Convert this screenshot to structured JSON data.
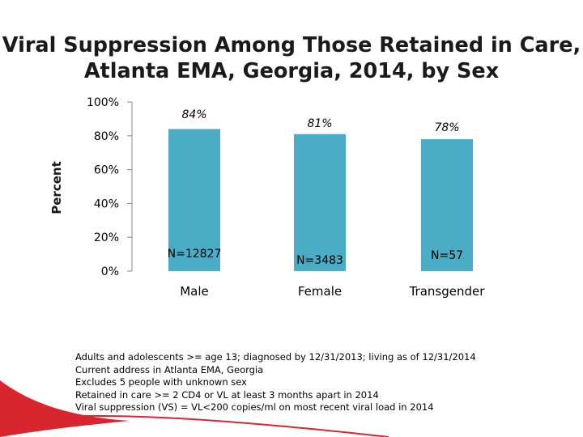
{
  "title": {
    "line1": "Viral Suppression Among Those Retained in Care,",
    "line2": "Atlanta EMA, Georgia, 2014, by Sex"
  },
  "chart_data": {
    "type": "bar",
    "title": "Viral Suppression Among Those Retained in Care, Atlanta EMA, Georgia, 2014, by Sex",
    "xlabel": "",
    "ylabel": "Percent",
    "ylim": [
      0,
      100
    ],
    "yticks": [
      0,
      20,
      40,
      60,
      80,
      100
    ],
    "ytick_labels": [
      "0%",
      "20%",
      "40%",
      "60%",
      "80%",
      "100%"
    ],
    "categories": [
      "Male",
      "Female",
      "Transgender"
    ],
    "values": [
      84,
      81,
      78
    ],
    "value_labels": [
      "84%",
      "81%",
      "78%"
    ],
    "n_labels": [
      "N=12827",
      "N=3483",
      "N=57"
    ],
    "grid": false,
    "bar_color": "#4bacc6"
  },
  "notes": [
    "Adults and adolescents >= age 13; diagnosed by 12/31/2013; living as of 12/31/2014",
    "Current address in Atlanta EMA, Georgia",
    "Excludes 5 people with unknown sex",
    "Retained in care >= 2 CD4 or VL at least 3 months apart in 2014",
    "Viral suppression (VS) = VL<200 copies/ml  on most recent viral load in 2014"
  ],
  "colors": {
    "bar": "#4bacc6",
    "axis": "#888888",
    "accent_red": "#d9262e"
  }
}
